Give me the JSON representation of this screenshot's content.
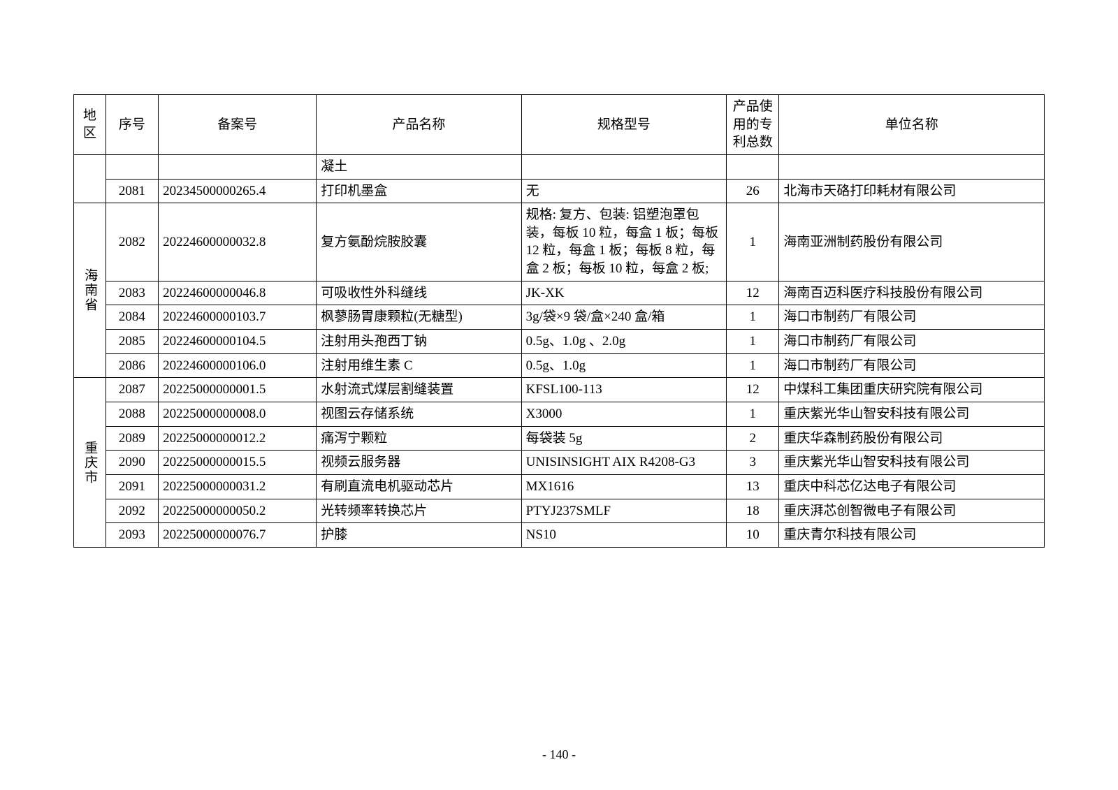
{
  "page_number": "- 140 -",
  "headers": {
    "region": "地区",
    "seq": "序号",
    "filing": "备案号",
    "product": "产品名称",
    "spec": "规格型号",
    "patent_count": "产品使用的专利总数",
    "org": "单位名称"
  },
  "rows": [
    {
      "region": "",
      "seq": "",
      "filing": "",
      "product": "凝土",
      "spec": "",
      "patent_count": "",
      "org": ""
    },
    {
      "region": "",
      "seq": "2081",
      "filing": "20234500000265.4",
      "product": "打印机墨盒",
      "spec": "无",
      "patent_count": "26",
      "org": "北海市天硌打印耗材有限公司"
    },
    {
      "region": "海南省",
      "seq": "2082",
      "filing": "20224600000032.8",
      "product": "复方氨酚烷胺胶囊",
      "spec": "规格: 复方、包装: 铝塑泡罩包装，每板 10 粒，每盒 1 板；每板 12 粒，每盒 1 板；每板 8 粒，每盒 2 板；每板 10 粒，每盒 2 板;",
      "patent_count": "1",
      "org": "海南亚洲制药股份有限公司"
    },
    {
      "seq": "2083",
      "filing": "20224600000046.8",
      "product": "可吸收性外科缝线",
      "spec": "JK-XK",
      "patent_count": "12",
      "org": "海南百迈科医疗科技股份有限公司"
    },
    {
      "seq": "2084",
      "filing": "20224600000103.7",
      "product": "枫蓼肠胃康颗粒(无糖型)",
      "spec": "3g/袋×9 袋/盒×240 盒/箱",
      "patent_count": "1",
      "org": "海口市制药厂有限公司"
    },
    {
      "seq": "2085",
      "filing": "20224600000104.5",
      "product": "注射用头孢西丁钠",
      "spec": "0.5g、1.0g 、2.0g",
      "patent_count": "1",
      "org": "海口市制药厂有限公司"
    },
    {
      "seq": "2086",
      "filing": "20224600000106.0",
      "product": "注射用维生素 C",
      "spec": "0.5g、1.0g",
      "patent_count": "1",
      "org": "海口市制药厂有限公司"
    },
    {
      "region": "重庆市",
      "seq": "2087",
      "filing": "20225000000001.5",
      "product": "水射流式煤层割缝装置",
      "spec": "KFSL100-113",
      "patent_count": "12",
      "org": "中煤科工集团重庆研究院有限公司"
    },
    {
      "seq": "2088",
      "filing": "20225000000008.0",
      "product": "视图云存储系统",
      "spec": "X3000",
      "patent_count": "1",
      "org": "重庆紫光华山智安科技有限公司"
    },
    {
      "seq": "2089",
      "filing": "20225000000012.2",
      "product": "痛泻宁颗粒",
      "spec": "每袋装 5g",
      "patent_count": "2",
      "org": "重庆华森制药股份有限公司"
    },
    {
      "seq": "2090",
      "filing": "20225000000015.5",
      "product": "视频云服务器",
      "spec": "UNISINSIGHT AIX R4208-G3",
      "patent_count": "3",
      "org": "重庆紫光华山智安科技有限公司"
    },
    {
      "seq": "2091",
      "filing": "20225000000031.2",
      "product": "有刷直流电机驱动芯片",
      "spec": "MX1616",
      "patent_count": "13",
      "org": "重庆中科芯亿达电子有限公司"
    },
    {
      "seq": "2092",
      "filing": "20225000000050.2",
      "product": "光转频率转换芯片",
      "spec": "PTYJ237SMLF",
      "patent_count": "18",
      "org": "重庆湃芯创智微电子有限公司"
    },
    {
      "seq": "2093",
      "filing": "20225000000076.7",
      "product": "护膝",
      "spec": "NS10",
      "patent_count": "10",
      "org": "重庆青尔科技有限公司"
    }
  ]
}
